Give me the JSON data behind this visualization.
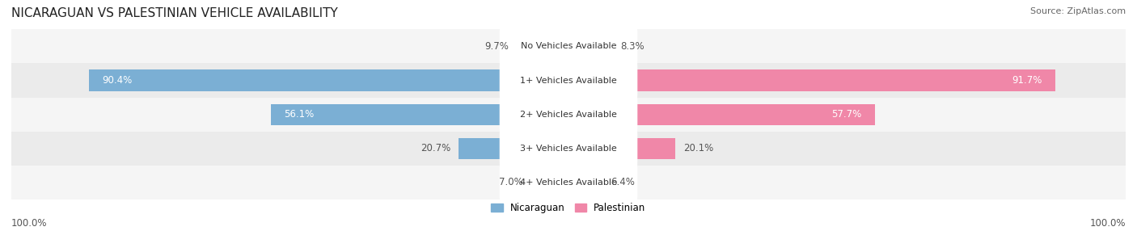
{
  "title": "NICARAGUAN VS PALESTINIAN VEHICLE AVAILABILITY",
  "source": "Source: ZipAtlas.com",
  "categories": [
    "No Vehicles Available",
    "1+ Vehicles Available",
    "2+ Vehicles Available",
    "3+ Vehicles Available",
    "4+ Vehicles Available"
  ],
  "nicaraguan_values": [
    9.7,
    90.4,
    56.1,
    20.7,
    7.0
  ],
  "palestinian_values": [
    8.3,
    91.7,
    57.7,
    20.1,
    6.4
  ],
  "nicaraguan_color": "#7bafd4",
  "palestinian_color": "#f087a8",
  "row_bg_even": "#f5f5f5",
  "row_bg_odd": "#ebebeb",
  "legend_nicaraguan": "Nicaraguan",
  "legend_palestinian": "Palestinian",
  "axis_label_left": "100.0%",
  "axis_label_right": "100.0%",
  "title_fontsize": 11,
  "source_fontsize": 8,
  "label_fontsize": 8.5,
  "value_fontsize": 8.5,
  "bar_height": 0.62,
  "figsize": [
    14.06,
    2.86
  ],
  "dpi": 100
}
